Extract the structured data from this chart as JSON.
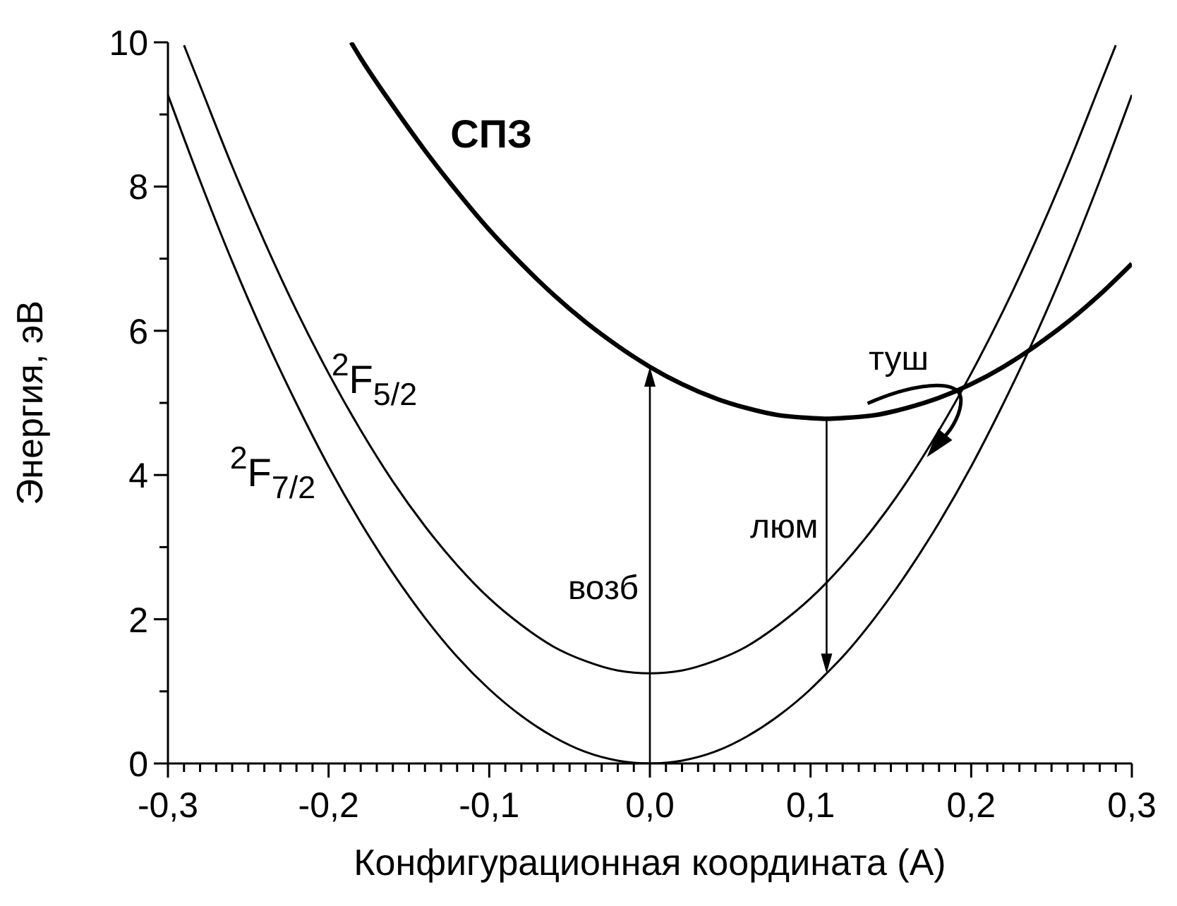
{
  "chart_data": {
    "type": "line",
    "xlabel": "Конфигурационная координата (А)",
    "ylabel": "Энергия, эВ",
    "xlim": [
      -0.3,
      0.3
    ],
    "ylim": [
      0,
      10
    ],
    "xticks": [
      {
        "value": -0.3,
        "label": "-0,3"
      },
      {
        "value": -0.29,
        "label": null
      },
      {
        "value": -0.28,
        "label": null
      },
      {
        "value": -0.27,
        "label": null
      },
      {
        "value": -0.26,
        "label": null
      },
      {
        "value": -0.25,
        "label": null
      },
      {
        "value": -0.24,
        "label": null
      },
      {
        "value": -0.23,
        "label": null
      },
      {
        "value": -0.22,
        "label": null
      },
      {
        "value": -0.21,
        "label": null
      },
      {
        "value": -0.2,
        "label": "-0,2"
      },
      {
        "value": -0.19,
        "label": null
      },
      {
        "value": -0.18,
        "label": null
      },
      {
        "value": -0.17,
        "label": null
      },
      {
        "value": -0.16,
        "label": null
      },
      {
        "value": -0.15,
        "label": null
      },
      {
        "value": -0.14,
        "label": null
      },
      {
        "value": -0.13,
        "label": null
      },
      {
        "value": -0.12,
        "label": null
      },
      {
        "value": -0.11,
        "label": null
      },
      {
        "value": -0.1,
        "label": "-0,1"
      },
      {
        "value": -0.09,
        "label": null
      },
      {
        "value": -0.08,
        "label": null
      },
      {
        "value": -0.07,
        "label": null
      },
      {
        "value": -0.06,
        "label": null
      },
      {
        "value": -0.05,
        "label": null
      },
      {
        "value": -0.04,
        "label": null
      },
      {
        "value": -0.03,
        "label": null
      },
      {
        "value": -0.02,
        "label": null
      },
      {
        "value": -0.01,
        "label": null
      },
      {
        "value": 0,
        "label": "0,0"
      },
      {
        "value": 0.01,
        "label": null
      },
      {
        "value": 0.02,
        "label": null
      },
      {
        "value": 0.03,
        "label": null
      },
      {
        "value": 0.04,
        "label": null
      },
      {
        "value": 0.05,
        "label": null
      },
      {
        "value": 0.06,
        "label": null
      },
      {
        "value": 0.07,
        "label": null
      },
      {
        "value": 0.08,
        "label": null
      },
      {
        "value": 0.09,
        "label": null
      },
      {
        "value": 0.1,
        "label": "0,1"
      },
      {
        "value": 0.11,
        "label": null
      },
      {
        "value": 0.12,
        "label": null
      },
      {
        "value": 0.13,
        "label": null
      },
      {
        "value": 0.14,
        "label": null
      },
      {
        "value": 0.15,
        "label": null
      },
      {
        "value": 0.16,
        "label": null
      },
      {
        "value": 0.17,
        "label": null
      },
      {
        "value": 0.18,
        "label": null
      },
      {
        "value": 0.19,
        "label": null
      },
      {
        "value": 0.2,
        "label": "0,2"
      },
      {
        "value": 0.21,
        "label": null
      },
      {
        "value": 0.22,
        "label": null
      },
      {
        "value": 0.23,
        "label": null
      },
      {
        "value": 0.24,
        "label": null
      },
      {
        "value": 0.25,
        "label": null
      },
      {
        "value": 0.26,
        "label": null
      },
      {
        "value": 0.27,
        "label": null
      },
      {
        "value": 0.28,
        "label": null
      },
      {
        "value": 0.29,
        "label": null
      },
      {
        "value": 0.3,
        "label": "0,3"
      }
    ],
    "yticks": [
      0,
      {
        "value": 1,
        "label": null
      },
      2,
      {
        "value": 3,
        "label": null
      },
      4,
      {
        "value": 5,
        "label": null
      },
      6,
      {
        "value": 7,
        "label": null
      },
      8,
      {
        "value": 9,
        "label": null
      },
      10
    ],
    "grid": false,
    "marker": "none",
    "line_style": "solid",
    "series": [
      {
        "name": "СПЗ",
        "color": "#000000",
        "x": [
          -0.186,
          -0.18,
          -0.16,
          -0.14,
          -0.12,
          -0.1,
          -0.08,
          -0.06,
          -0.04,
          -0.02,
          0,
          0.02,
          0.04,
          0.06,
          0.08,
          0.1,
          0.11,
          0.12,
          0.14,
          0.16,
          0.18,
          0.2,
          0.22,
          0.24,
          0.26,
          0.28,
          0.3
        ],
        "values": [
          10.0,
          9.78,
          9.12,
          8.5,
          7.93,
          7.4,
          6.93,
          6.5,
          6.12,
          5.79,
          5.5,
          5.26,
          5.07,
          4.93,
          4.83,
          4.79,
          4.78,
          4.79,
          4.83,
          4.93,
          5.07,
          5.26,
          5.5,
          5.79,
          6.12,
          6.5,
          6.93
        ]
      },
      {
        "name": "$^{2}$F$_{5/2}$",
        "color": "#000000",
        "x": [
          -0.29,
          -0.28,
          -0.26,
          -0.24,
          -0.22,
          -0.2,
          -0.18,
          -0.16,
          -0.14,
          -0.12,
          -0.1,
          -0.08,
          -0.06,
          -0.04,
          -0.02,
          0,
          0.02,
          0.04,
          0.06,
          0.08,
          0.1,
          0.12,
          0.14,
          0.16,
          0.18,
          0.2,
          0.22,
          0.24,
          0.26,
          0.28,
          0.29
        ],
        "values": [
          9.96,
          9.4,
          8.28,
          7.24,
          6.28,
          5.41,
          4.62,
          3.91,
          3.29,
          2.75,
          2.29,
          1.92,
          1.62,
          1.42,
          1.29,
          1.25,
          1.29,
          1.42,
          1.62,
          1.92,
          2.29,
          2.75,
          3.29,
          3.91,
          4.62,
          5.41,
          6.28,
          7.24,
          8.28,
          9.4,
          9.96
        ]
      },
      {
        "name": "$^{2}$F$_{7/2}$",
        "color": "#000000",
        "x": [
          -0.3,
          -0.28,
          -0.26,
          -0.24,
          -0.22,
          -0.2,
          -0.18,
          -0.16,
          -0.14,
          -0.12,
          -0.1,
          -0.08,
          -0.06,
          -0.04,
          -0.02,
          0,
          0.02,
          0.04,
          0.06,
          0.08,
          0.1,
          0.11,
          0.12,
          0.14,
          0.16,
          0.18,
          0.2,
          0.22,
          0.24,
          0.26,
          0.28,
          0.3
        ],
        "values": [
          9.27,
          8.08,
          6.96,
          5.93,
          4.99,
          4.12,
          3.34,
          2.64,
          2.02,
          1.48,
          1.03,
          0.66,
          0.37,
          0.16,
          0.04,
          0,
          0.04,
          0.16,
          0.37,
          0.66,
          1.03,
          1.25,
          1.48,
          2.02,
          2.64,
          3.34,
          4.12,
          4.99,
          5.93,
          6.96,
          8.08,
          9.27
        ]
      }
    ],
    "annotations": [
      "возб",
      "люм",
      {
        "text": "туш",
        "x": 0.19,
        "y": 5.15
      }
    ]
  }
}
